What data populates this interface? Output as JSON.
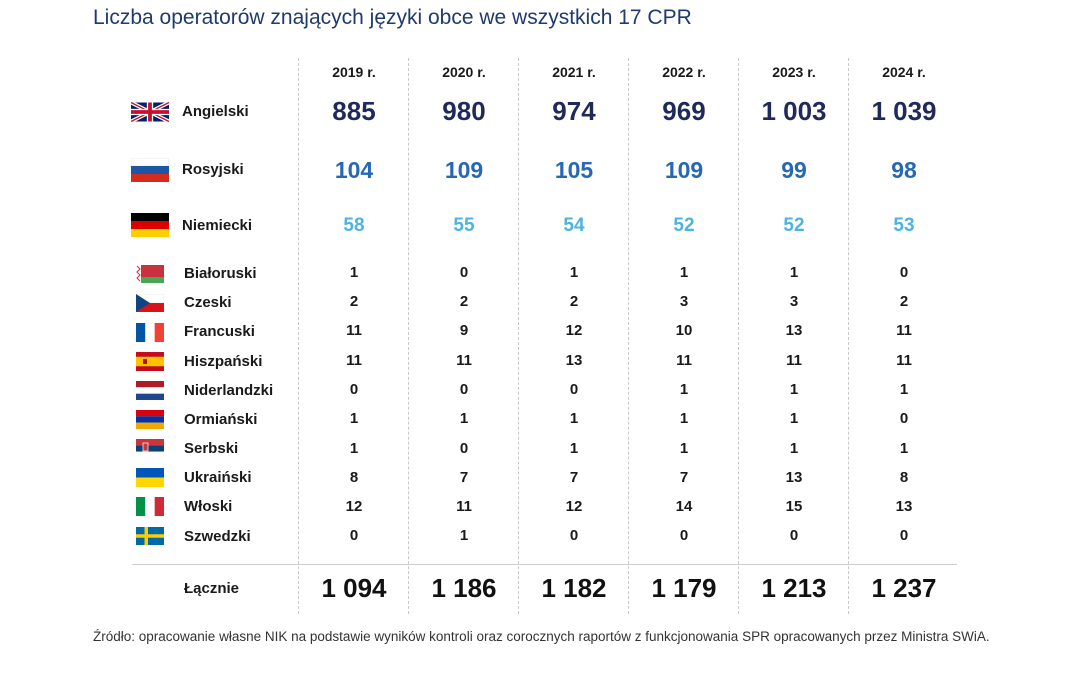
{
  "title": "Liczba operatorów znających języki obce we wszystkich 17 CPR",
  "years": [
    "2019 r.",
    "2020 r.",
    "2021 r.",
    "2022 r.",
    "2023 r.",
    "2024 r."
  ],
  "rows": [
    {
      "label": "Angielski",
      "values": [
        "885",
        "980",
        "974",
        "969",
        "1 003",
        "1 039"
      ]
    },
    {
      "label": "Rosyjski",
      "values": [
        "104",
        "109",
        "105",
        "109",
        "99",
        "98"
      ]
    },
    {
      "label": "Niemiecki",
      "values": [
        "58",
        "55",
        "54",
        "52",
        "52",
        "53"
      ]
    },
    {
      "label": "Białoruski",
      "values": [
        "1",
        "0",
        "1",
        "1",
        "1",
        "0"
      ]
    },
    {
      "label": "Czeski",
      "values": [
        "2",
        "2",
        "2",
        "3",
        "3",
        "2"
      ]
    },
    {
      "label": "Francuski",
      "values": [
        "11",
        "9",
        "12",
        "10",
        "13",
        "11"
      ]
    },
    {
      "label": "Hiszpański",
      "values": [
        "11",
        "11",
        "13",
        "11",
        "11",
        "11"
      ]
    },
    {
      "label": "Niderlandzki",
      "values": [
        "0",
        "0",
        "0",
        "1",
        "1",
        "1"
      ]
    },
    {
      "label": "Ormiański",
      "values": [
        "1",
        "1",
        "1",
        "1",
        "1",
        "0"
      ]
    },
    {
      "label": "Serbski",
      "values": [
        "1",
        "0",
        "1",
        "1",
        "1",
        "1"
      ]
    },
    {
      "label": "Ukraiński",
      "values": [
        "8",
        "7",
        "7",
        "7",
        "13",
        "8"
      ]
    },
    {
      "label": "Włoski",
      "values": [
        "12",
        "11",
        "12",
        "14",
        "15",
        "13"
      ]
    },
    {
      "label": "Szwedzki",
      "values": [
        "0",
        "1",
        "0",
        "0",
        "0",
        "0"
      ]
    }
  ],
  "total": {
    "label": "Łącznie",
    "values": [
      "1 094",
      "1 186",
      "1 182",
      "1 179",
      "1 213",
      "1 237"
    ]
  },
  "source": "Źródło: opracowanie własne NIK na podstawie wyników kontroli oraz corocznych raportów z funkcjonowania SPR opracowanych przez Ministra SWiA.",
  "icons": [
    "uk-flag-icon",
    "russia-flag-icon",
    "germany-flag-icon",
    "belarus-flag-icon",
    "czech-flag-icon",
    "france-flag-icon",
    "spain-flag-icon",
    "netherlands-flag-icon",
    "armenia-flag-icon",
    "serbia-flag-icon",
    "ukraine-flag-icon",
    "italy-flag-icon",
    "sweden-flag-icon"
  ],
  "colors": {
    "title": "#1f3b6e",
    "english": "#1f2a5a",
    "russian": "#2668b5",
    "german": "#4fb3df"
  }
}
